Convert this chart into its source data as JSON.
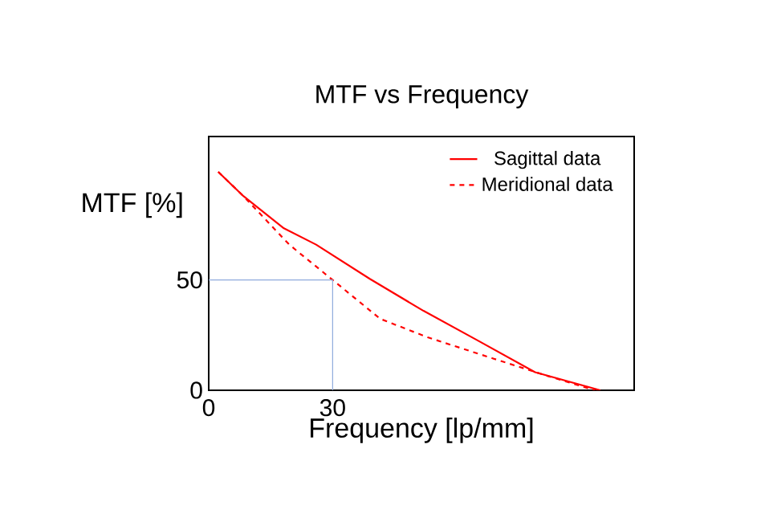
{
  "chart_data": {
    "type": "line",
    "title": "MTF vs Frequency",
    "xlabel": "Frequency [lp/mm]",
    "ylabel": "MTF [%]",
    "xlim": [
      0,
      103
    ],
    "ylim": [
      0,
      115
    ],
    "xticks": [
      0,
      30
    ],
    "yticks": [
      0,
      50
    ],
    "legend": "top right",
    "marker": "none",
    "series": [
      {
        "name": "Sagittal data",
        "color": "#ff0000",
        "line_style": "solid",
        "x": [
          2.3,
          8.4,
          18.2,
          26,
          39,
          52,
          65,
          79,
          94.8
        ],
        "values": [
          99,
          88,
          73.4,
          66,
          50.5,
          36,
          22.7,
          8.2,
          0
        ]
      },
      {
        "name": "Meridional data",
        "color": "#ff0000",
        "line_style": "dashed",
        "x": [
          2.3,
          8.4,
          19.5,
          30,
          41.5,
          53,
          69,
          82,
          93.5
        ],
        "values": [
          99,
          88,
          66,
          50,
          32.4,
          24,
          14.3,
          6.5,
          0
        ]
      },
      {
        "color": "#8faadc",
        "line_style": "solid",
        "x": [
          0,
          30,
          30
        ],
        "values": [
          50,
          50,
          0
        ]
      }
    ]
  }
}
